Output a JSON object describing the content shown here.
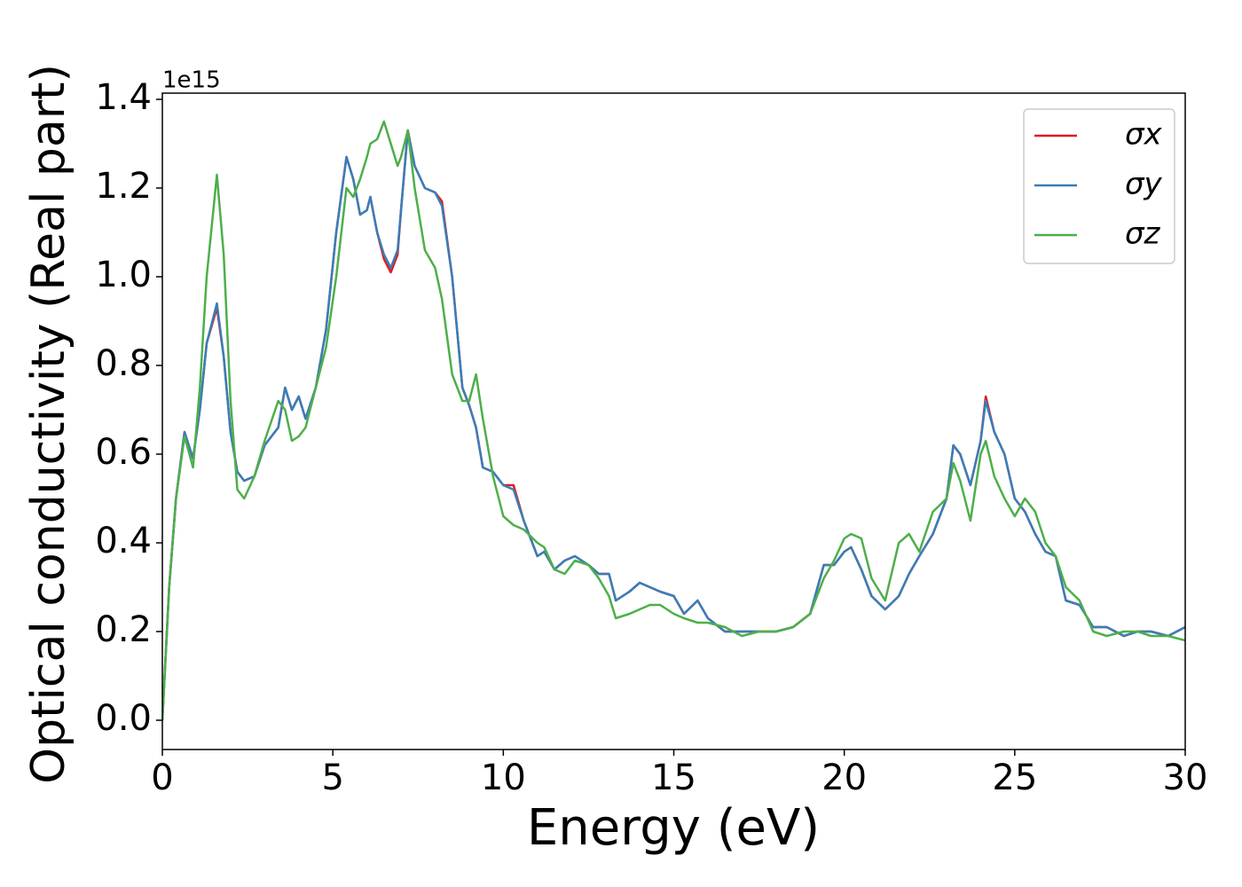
{
  "chart_data": {
    "type": "line",
    "xlabel": "Energy (eV)",
    "ylabel": "Optical conductivity (Real part)",
    "y_offset_label": "1e15",
    "x": [
      0,
      0.2,
      0.4,
      0.65,
      0.9,
      1.1,
      1.3,
      1.6,
      1.8,
      2.0,
      2.2,
      2.4,
      2.7,
      3.0,
      3.4,
      3.6,
      3.8,
      4.0,
      4.2,
      4.5,
      4.8,
      5.1,
      5.4,
      5.6,
      5.8,
      6.0,
      6.1,
      6.3,
      6.5,
      6.7,
      6.9,
      7.0,
      7.2,
      7.4,
      7.7,
      8.0,
      8.2,
      8.5,
      8.8,
      9.0,
      9.2,
      9.4,
      9.7,
      10.0,
      10.3,
      10.6,
      11.0,
      11.2,
      11.5,
      11.8,
      12.1,
      12.5,
      12.8,
      13.1,
      13.3,
      13.7,
      14.0,
      14.3,
      14.6,
      15.0,
      15.3,
      15.7,
      16.0,
      16.5,
      17.0,
      17.5,
      18.0,
      18.5,
      19.0,
      19.4,
      19.7,
      20.0,
      20.2,
      20.5,
      20.8,
      21.2,
      21.6,
      21.9,
      22.2,
      22.6,
      23.0,
      23.2,
      23.4,
      23.7,
      24.0,
      24.15,
      24.4,
      24.7,
      25.0,
      25.3,
      25.6,
      25.9,
      26.2,
      26.5,
      26.9,
      27.3,
      27.7,
      28.2,
      28.6,
      29.0,
      29.5,
      30.0
    ],
    "series": [
      {
        "name": "σx",
        "color": "#e41a1c",
        "values": [
          0.0,
          0.3,
          0.5,
          0.65,
          0.59,
          0.7,
          0.85,
          0.93,
          0.82,
          0.65,
          0.56,
          0.54,
          0.55,
          0.62,
          0.66,
          0.75,
          0.7,
          0.73,
          0.68,
          0.75,
          0.88,
          1.1,
          1.27,
          1.22,
          1.14,
          1.15,
          1.18,
          1.1,
          1.04,
          1.01,
          1.05,
          1.15,
          1.33,
          1.25,
          1.2,
          1.19,
          1.17,
          1.0,
          0.75,
          0.71,
          0.66,
          0.57,
          0.56,
          0.53,
          0.53,
          0.45,
          0.37,
          0.38,
          0.34,
          0.36,
          0.37,
          0.35,
          0.33,
          0.33,
          0.27,
          0.29,
          0.31,
          0.3,
          0.29,
          0.28,
          0.24,
          0.27,
          0.23,
          0.2,
          0.2,
          0.2,
          0.2,
          0.21,
          0.24,
          0.35,
          0.35,
          0.38,
          0.39,
          0.34,
          0.28,
          0.25,
          0.28,
          0.33,
          0.37,
          0.42,
          0.5,
          0.62,
          0.6,
          0.53,
          0.63,
          0.73,
          0.65,
          0.6,
          0.5,
          0.47,
          0.42,
          0.38,
          0.37,
          0.27,
          0.26,
          0.21,
          0.21,
          0.19,
          0.2,
          0.2,
          0.19,
          0.21
        ]
      },
      {
        "name": "σy",
        "color": "#377eb8",
        "values": [
          0.0,
          0.3,
          0.5,
          0.65,
          0.59,
          0.7,
          0.85,
          0.94,
          0.82,
          0.65,
          0.56,
          0.54,
          0.55,
          0.62,
          0.66,
          0.75,
          0.7,
          0.73,
          0.68,
          0.75,
          0.88,
          1.1,
          1.27,
          1.22,
          1.14,
          1.15,
          1.18,
          1.1,
          1.05,
          1.02,
          1.06,
          1.15,
          1.33,
          1.25,
          1.2,
          1.19,
          1.16,
          1.0,
          0.75,
          0.71,
          0.66,
          0.57,
          0.56,
          0.53,
          0.52,
          0.45,
          0.37,
          0.38,
          0.34,
          0.36,
          0.37,
          0.35,
          0.33,
          0.33,
          0.27,
          0.29,
          0.31,
          0.3,
          0.29,
          0.28,
          0.24,
          0.27,
          0.23,
          0.2,
          0.2,
          0.2,
          0.2,
          0.21,
          0.24,
          0.35,
          0.35,
          0.38,
          0.39,
          0.34,
          0.28,
          0.25,
          0.28,
          0.33,
          0.37,
          0.42,
          0.5,
          0.62,
          0.6,
          0.53,
          0.63,
          0.72,
          0.65,
          0.6,
          0.5,
          0.47,
          0.42,
          0.38,
          0.37,
          0.27,
          0.26,
          0.21,
          0.21,
          0.19,
          0.2,
          0.2,
          0.19,
          0.21
        ]
      },
      {
        "name": "σz",
        "color": "#4daf4a",
        "values": [
          0.0,
          0.3,
          0.5,
          0.64,
          0.57,
          0.75,
          1.0,
          1.23,
          1.05,
          0.72,
          0.52,
          0.5,
          0.55,
          0.63,
          0.72,
          0.7,
          0.63,
          0.64,
          0.66,
          0.75,
          0.84,
          1.0,
          1.2,
          1.18,
          1.22,
          1.27,
          1.3,
          1.31,
          1.35,
          1.3,
          1.25,
          1.27,
          1.33,
          1.2,
          1.06,
          1.02,
          0.95,
          0.78,
          0.72,
          0.72,
          0.78,
          0.68,
          0.55,
          0.46,
          0.44,
          0.43,
          0.4,
          0.39,
          0.34,
          0.33,
          0.36,
          0.35,
          0.32,
          0.28,
          0.23,
          0.24,
          0.25,
          0.26,
          0.26,
          0.24,
          0.23,
          0.22,
          0.22,
          0.21,
          0.19,
          0.2,
          0.2,
          0.21,
          0.24,
          0.32,
          0.36,
          0.41,
          0.42,
          0.41,
          0.32,
          0.27,
          0.4,
          0.42,
          0.38,
          0.47,
          0.5,
          0.58,
          0.54,
          0.45,
          0.6,
          0.63,
          0.55,
          0.5,
          0.46,
          0.5,
          0.47,
          0.4,
          0.37,
          0.3,
          0.27,
          0.2,
          0.19,
          0.2,
          0.2,
          0.19,
          0.19,
          0.18
        ]
      }
    ],
    "xlim": [
      0,
      30
    ],
    "ylim": [
      -0.066,
      1.414
    ],
    "xticks": [
      0,
      5,
      10,
      15,
      20,
      25,
      30
    ],
    "yticks": [
      {
        "value": 0,
        "label": "0.0"
      },
      0.2,
      0.4,
      0.6,
      0.8,
      {
        "value": 1,
        "label": "1.0"
      },
      1.2,
      1.4
    ],
    "legend": "upper right",
    "grid": false
  }
}
